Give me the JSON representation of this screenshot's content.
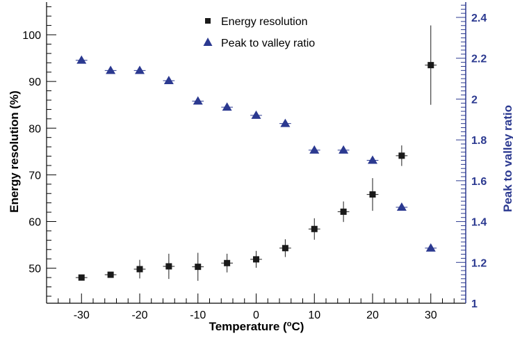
{
  "chart_data": {
    "type": "scatter",
    "xlabel": "Temperature (°C)",
    "ylabel": "Energy resolution (%)",
    "y2label": "Peak to valley ratio",
    "xlim": [
      -36,
      36
    ],
    "ylim": [
      42.5,
      107
    ],
    "y2lim": [
      1.0,
      2.475
    ],
    "xticks": [
      -30,
      -20,
      -10,
      0,
      10,
      20,
      30
    ],
    "yticks": [
      50,
      60,
      70,
      80,
      90,
      100
    ],
    "y2ticks": [
      1,
      1.2,
      1.4,
      1.6,
      1.8,
      2,
      2.2,
      2.4
    ],
    "legend_position": "top-center",
    "colors": {
      "energy": "#1a1a1a",
      "peak": "#2b3990",
      "right_axis": "#2b3990"
    },
    "series": [
      {
        "name": "Energy resolution",
        "axis": "left",
        "marker": "square",
        "x": [
          -30,
          -25,
          -20,
          -15,
          -10,
          -5,
          0,
          5,
          10,
          15,
          20,
          25,
          30
        ],
        "y": [
          48.0,
          48.6,
          49.8,
          50.4,
          50.3,
          51.1,
          51.9,
          54.3,
          58.4,
          62.1,
          65.8,
          74.1,
          93.5
        ],
        "yerr": [
          0.4,
          0.4,
          2.0,
          2.7,
          3.0,
          2.0,
          1.8,
          1.9,
          2.3,
          2.2,
          3.5,
          2.2,
          8.5
        ],
        "xerr": [
          1,
          1,
          1,
          1,
          1,
          1,
          1,
          1,
          1,
          1,
          1,
          1,
          1
        ]
      },
      {
        "name": "Peak to valley ratio",
        "axis": "right",
        "marker": "triangle",
        "x": [
          -30,
          -25,
          -20,
          -15,
          -10,
          -5,
          0,
          5,
          10,
          15,
          20,
          25,
          30
        ],
        "y": [
          2.19,
          2.14,
          2.14,
          2.09,
          1.99,
          1.96,
          1.92,
          1.88,
          1.75,
          1.75,
          1.7,
          1.47,
          1.27
        ],
        "xerr": [
          1,
          1,
          1,
          1,
          1,
          1,
          1,
          1,
          1,
          1,
          1,
          1,
          1
        ]
      }
    ]
  }
}
